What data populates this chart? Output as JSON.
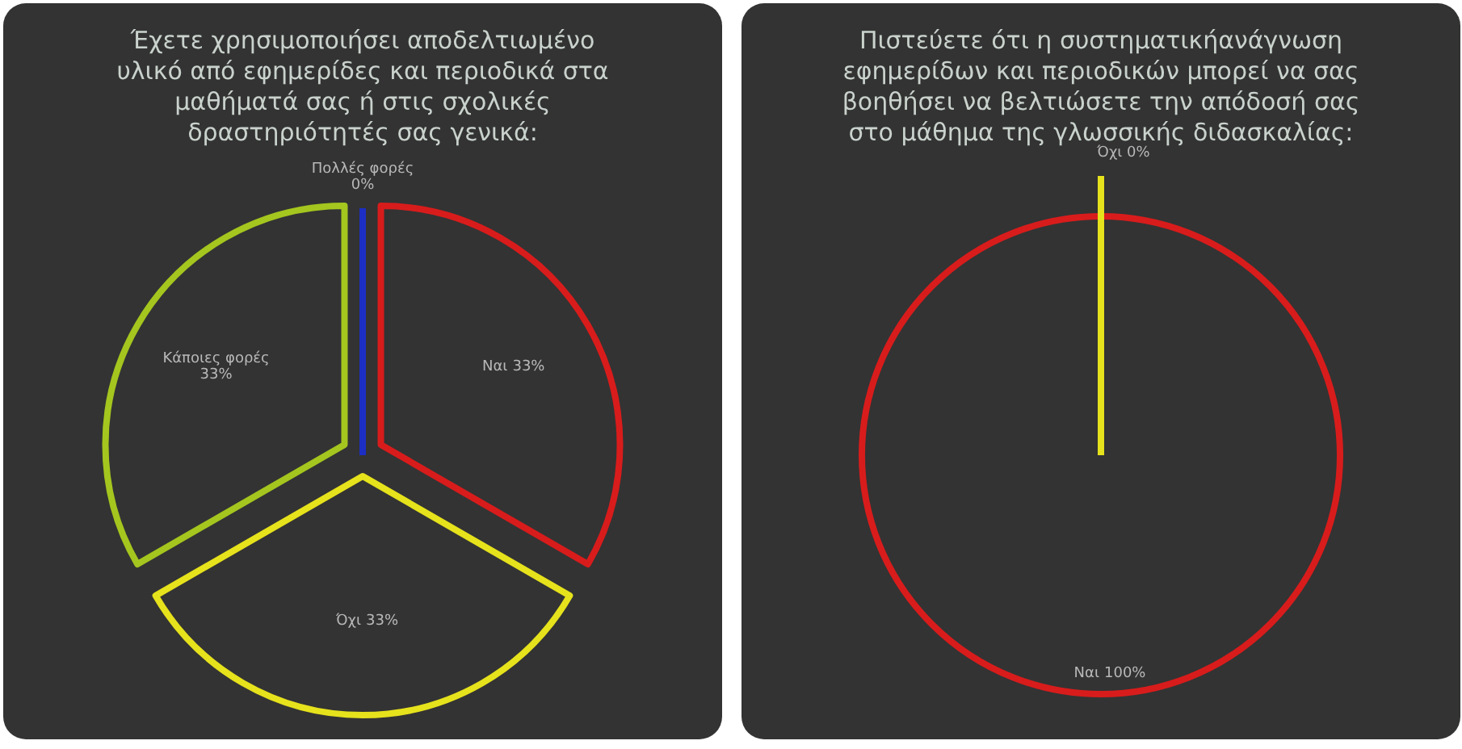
{
  "chart_data": [
    {
      "type": "pie",
      "title": "Έχετε χρησιμοποιήσει αποδελτιωμένο υλικό από εφημερίδες και περιοδικά στα μαθήματά σας ή στις σχολικές δραστηριότητές σας γενικά:",
      "categories": [
        "Ναι",
        "Όχι",
        "Κάποιες φορές",
        "Πολλές φορές"
      ],
      "values": [
        33,
        33,
        33,
        0
      ],
      "value_labels": [
        "33%",
        "33%",
        "33%",
        "0%"
      ],
      "colors": [
        "#d81c1c",
        "#e6e21c",
        "#a4c61e",
        "#1c2ec4"
      ]
    },
    {
      "type": "pie",
      "title": "Πιστεύετε ότι η συστηματικήανάγνωση εφημερίδων και περιοδικών μπορεί να σας βοηθήσει να βελτιώσετε την απόδοσή σας στο μάθημα της γλωσσικής διδασκαλίας:",
      "categories": [
        "Ναι",
        "Όχι"
      ],
      "values": [
        100,
        0
      ],
      "value_labels": [
        "100%",
        "0%"
      ],
      "colors": [
        "#d81c1c",
        "#e6e21c"
      ]
    }
  ]
}
